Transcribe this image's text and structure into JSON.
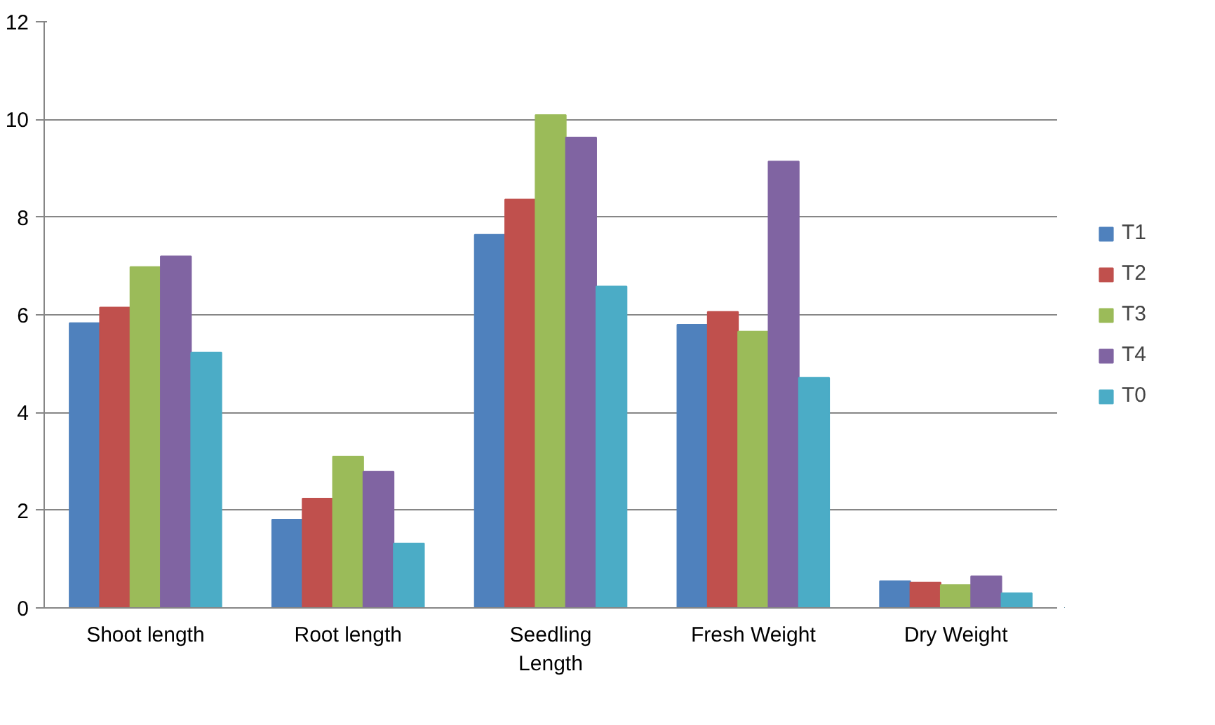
{
  "chart_data": {
    "type": "bar",
    "categories": [
      "Shoot length",
      "Root length",
      "Seedling Length",
      "Fresh Weight",
      "Dry Weight"
    ],
    "series": [
      {
        "name": "T1",
        "color": "#4f81bd",
        "values": [
          5.83,
          1.81,
          7.64,
          5.8,
          0.55
        ]
      },
      {
        "name": "T2",
        "color": "#c0504d",
        "values": [
          6.15,
          2.24,
          8.36,
          6.06,
          0.52
        ]
      },
      {
        "name": "T3",
        "color": "#9bbb59",
        "values": [
          6.98,
          3.1,
          10.09,
          5.66,
          0.47
        ]
      },
      {
        "name": "T4",
        "color": "#8064a2",
        "values": [
          7.2,
          2.79,
          9.63,
          9.14,
          0.65
        ]
      },
      {
        "name": "T0",
        "color": "#4bacc6",
        "values": [
          5.23,
          1.32,
          6.58,
          4.71,
          0.3
        ]
      }
    ],
    "ylim": [
      0,
      12
    ],
    "yticks": [
      0,
      2,
      4,
      6,
      8,
      10,
      12
    ],
    "grid": "y",
    "legend": "right"
  }
}
